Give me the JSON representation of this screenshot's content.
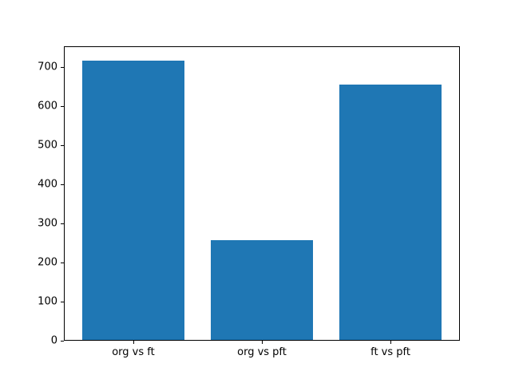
{
  "chart_data": {
    "type": "bar",
    "categories": [
      "org vs ft",
      "org vs pft",
      "ft vs pft"
    ],
    "values": [
      717,
      257,
      655
    ],
    "title": "",
    "xlabel": "",
    "ylabel": "",
    "ylim": [
      0,
      753
    ],
    "yticks": [
      0,
      100,
      200,
      300,
      400,
      500,
      600,
      700
    ],
    "bar_color": "#1f77b4",
    "bar_width_fraction": 0.8,
    "grid": false,
    "legend_position": "none",
    "background_color": "#ffffff",
    "spine_color": "#000000",
    "text_color": "#000000"
  }
}
